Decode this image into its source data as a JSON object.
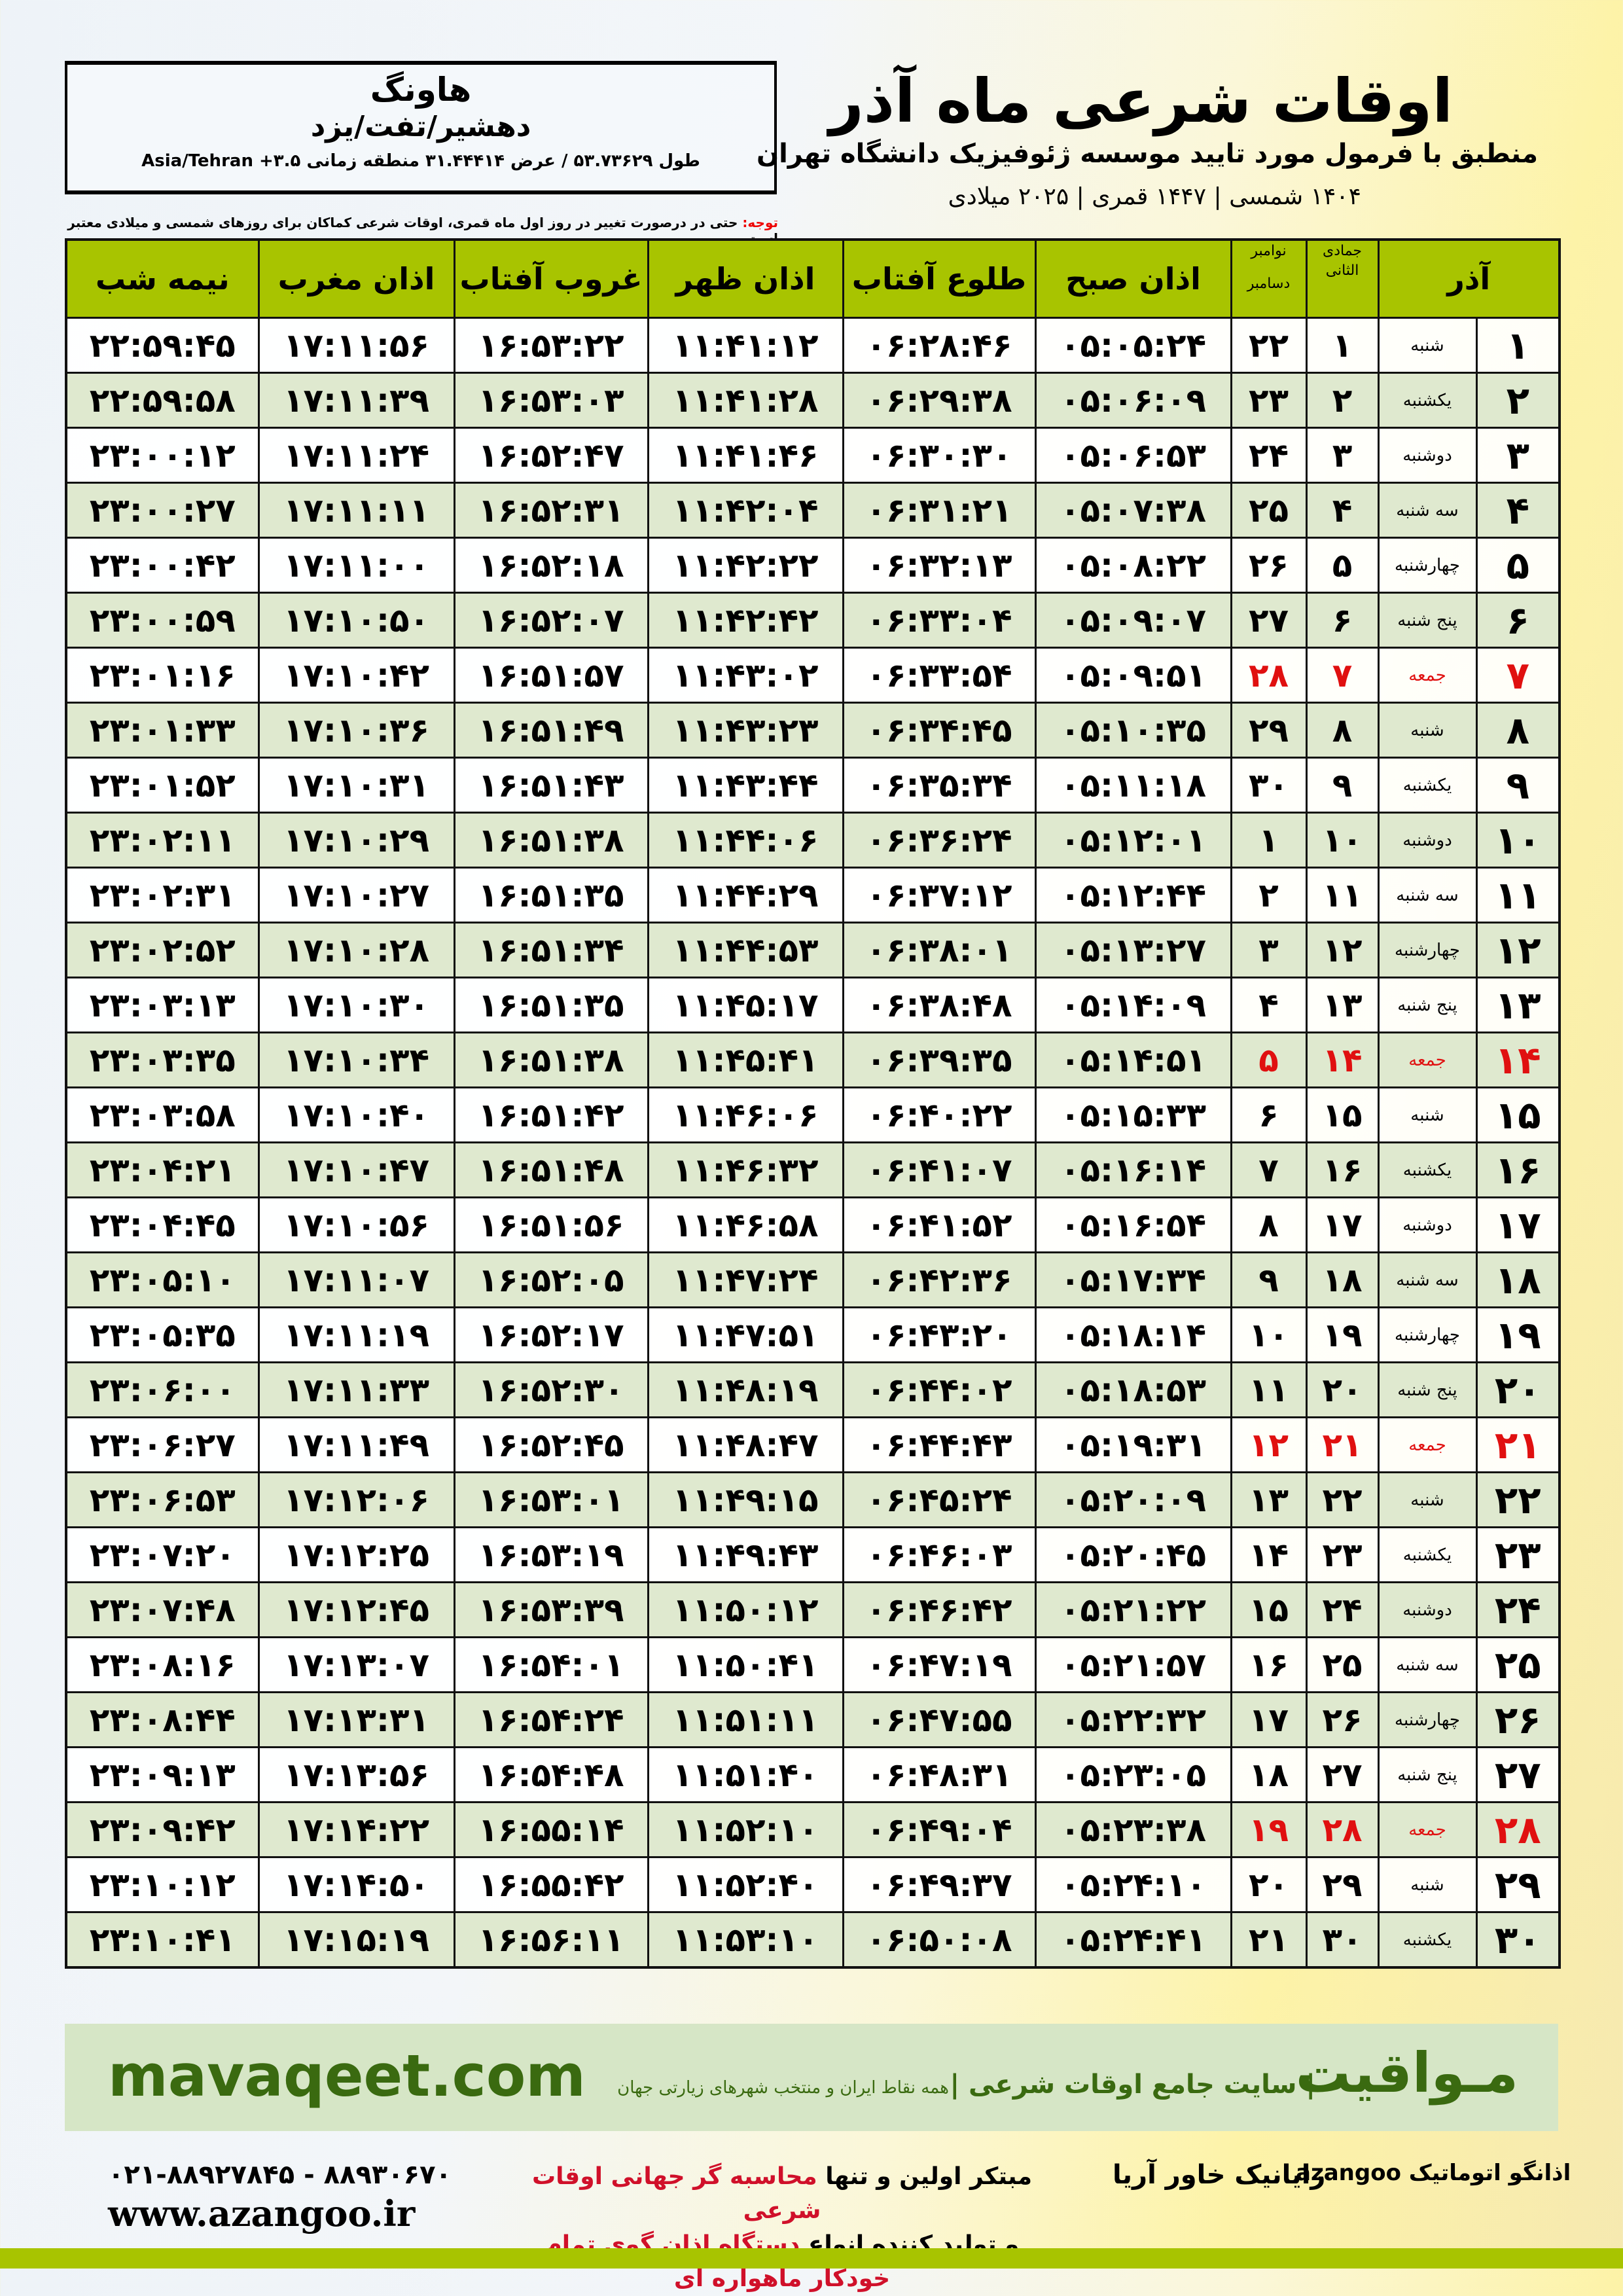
{
  "location": {
    "city": "هاونگ",
    "region": "دهشیر/تفت/یزد",
    "coords": "طول ۵۳.۷۳۶۲۹ / عرض ۳۱.۴۴۴۱۴ منطقه زمانی ۳.۵+ Asia/Tehran"
  },
  "header": {
    "title": "اوقات شرعی ماه آذر",
    "subtitle": "منطبق با فرمول مورد تایید موسسه ژئوفیزیک دانشگاه تهران",
    "dates": "۱۴۰۴ شمسی | ۱۴۴۷ قمری | ۲۰۲۵ میلادی"
  },
  "note": {
    "label": "توجه:",
    "text": " حتی در درصورت تغییر در روز اول ماه قمری، اوقات شرعی کماکان برای روزهای شمسی و میلادی معتبر است."
  },
  "table": {
    "headers": {
      "month": "آذر",
      "hijri": "جمادی الثانی",
      "greg1": "نوامبر",
      "greg2": "دسامبر",
      "fajr": "اذان صبح",
      "sunrise": "طلوع آفتاب",
      "dhuhr": "اذان ظهر",
      "sunset": "غروب آفتاب",
      "maghrib": "اذان مغرب",
      "midnight": "نیمه شب"
    },
    "rows": [
      [
        "۱",
        "شنبه",
        "۱",
        "۲۲",
        "۰۵:۰۵:۲۴",
        "۰۶:۲۸:۴۶",
        "۱۱:۴۱:۱۲",
        "۱۶:۵۳:۲۲",
        "۱۷:۱۱:۵۶",
        "۲۲:۵۹:۴۵"
      ],
      [
        "۲",
        "یکشنبه",
        "۲",
        "۲۳",
        "۰۵:۰۶:۰۹",
        "۰۶:۲۹:۳۸",
        "۱۱:۴۱:۲۸",
        "۱۶:۵۳:۰۳",
        "۱۷:۱۱:۳۹",
        "۲۲:۵۹:۵۸"
      ],
      [
        "۳",
        "دوشنبه",
        "۳",
        "۲۴",
        "۰۵:۰۶:۵۳",
        "۰۶:۳۰:۳۰",
        "۱۱:۴۱:۴۶",
        "۱۶:۵۲:۴۷",
        "۱۷:۱۱:۲۴",
        "۲۳:۰۰:۱۲"
      ],
      [
        "۴",
        "سه شنبه",
        "۴",
        "۲۵",
        "۰۵:۰۷:۳۸",
        "۰۶:۳۱:۲۱",
        "۱۱:۴۲:۰۴",
        "۱۶:۵۲:۳۱",
        "۱۷:۱۱:۱۱",
        "۲۳:۰۰:۲۷"
      ],
      [
        "۵",
        "چهارشنبه",
        "۵",
        "۲۶",
        "۰۵:۰۸:۲۲",
        "۰۶:۳۲:۱۳",
        "۱۱:۴۲:۲۲",
        "۱۶:۵۲:۱۸",
        "۱۷:۱۱:۰۰",
        "۲۳:۰۰:۴۲"
      ],
      [
        "۶",
        "پنج شنبه",
        "۶",
        "۲۷",
        "۰۵:۰۹:۰۷",
        "۰۶:۳۳:۰۴",
        "۱۱:۴۲:۴۲",
        "۱۶:۵۲:۰۷",
        "۱۷:۱۰:۵۰",
        "۲۳:۰۰:۵۹"
      ],
      [
        "۷",
        "جمعه",
        "۷",
        "۲۸",
        "۰۵:۰۹:۵۱",
        "۰۶:۳۳:۵۴",
        "۱۱:۴۳:۰۲",
        "۱۶:۵۱:۵۷",
        "۱۷:۱۰:۴۲",
        "۲۳:۰۱:۱۶"
      ],
      [
        "۸",
        "شنبه",
        "۸",
        "۲۹",
        "۰۵:۱۰:۳۵",
        "۰۶:۳۴:۴۵",
        "۱۱:۴۳:۲۳",
        "۱۶:۵۱:۴۹",
        "۱۷:۱۰:۳۶",
        "۲۳:۰۱:۳۳"
      ],
      [
        "۹",
        "یکشنبه",
        "۹",
        "۳۰",
        "۰۵:۱۱:۱۸",
        "۰۶:۳۵:۳۴",
        "۱۱:۴۳:۴۴",
        "۱۶:۵۱:۴۳",
        "۱۷:۱۰:۳۱",
        "۲۳:۰۱:۵۲"
      ],
      [
        "۱۰",
        "دوشنبه",
        "۱۰",
        "۱",
        "۰۵:۱۲:۰۱",
        "۰۶:۳۶:۲۴",
        "۱۱:۴۴:۰۶",
        "۱۶:۵۱:۳۸",
        "۱۷:۱۰:۲۹",
        "۲۳:۰۲:۱۱"
      ],
      [
        "۱۱",
        "سه شنبه",
        "۱۱",
        "۲",
        "۰۵:۱۲:۴۴",
        "۰۶:۳۷:۱۲",
        "۱۱:۴۴:۲۹",
        "۱۶:۵۱:۳۵",
        "۱۷:۱۰:۲۷",
        "۲۳:۰۲:۳۱"
      ],
      [
        "۱۲",
        "چهارشنبه",
        "۱۲",
        "۳",
        "۰۵:۱۳:۲۷",
        "۰۶:۳۸:۰۱",
        "۱۱:۴۴:۵۳",
        "۱۶:۵۱:۳۴",
        "۱۷:۱۰:۲۸",
        "۲۳:۰۲:۵۲"
      ],
      [
        "۱۳",
        "پنج شنبه",
        "۱۳",
        "۴",
        "۰۵:۱۴:۰۹",
        "۰۶:۳۸:۴۸",
        "۱۱:۴۵:۱۷",
        "۱۶:۵۱:۳۵",
        "۱۷:۱۰:۳۰",
        "۲۳:۰۳:۱۳"
      ],
      [
        "۱۴",
        "جمعه",
        "۱۴",
        "۵",
        "۰۵:۱۴:۵۱",
        "۰۶:۳۹:۳۵",
        "۱۱:۴۵:۴۱",
        "۱۶:۵۱:۳۸",
        "۱۷:۱۰:۳۴",
        "۲۳:۰۳:۳۵"
      ],
      [
        "۱۵",
        "شنبه",
        "۱۵",
        "۶",
        "۰۵:۱۵:۳۳",
        "۰۶:۴۰:۲۲",
        "۱۱:۴۶:۰۶",
        "۱۶:۵۱:۴۲",
        "۱۷:۱۰:۴۰",
        "۲۳:۰۳:۵۸"
      ],
      [
        "۱۶",
        "یکشنبه",
        "۱۶",
        "۷",
        "۰۵:۱۶:۱۴",
        "۰۶:۴۱:۰۷",
        "۱۱:۴۶:۳۲",
        "۱۶:۵۱:۴۸",
        "۱۷:۱۰:۴۷",
        "۲۳:۰۴:۲۱"
      ],
      [
        "۱۷",
        "دوشنبه",
        "۱۷",
        "۸",
        "۰۵:۱۶:۵۴",
        "۰۶:۴۱:۵۲",
        "۱۱:۴۶:۵۸",
        "۱۶:۵۱:۵۶",
        "۱۷:۱۰:۵۶",
        "۲۳:۰۴:۴۵"
      ],
      [
        "۱۸",
        "سه شنبه",
        "۱۸",
        "۹",
        "۰۵:۱۷:۳۴",
        "۰۶:۴۲:۳۶",
        "۱۱:۴۷:۲۴",
        "۱۶:۵۲:۰۵",
        "۱۷:۱۱:۰۷",
        "۲۳:۰۵:۱۰"
      ],
      [
        "۱۹",
        "چهارشنبه",
        "۱۹",
        "۱۰",
        "۰۵:۱۸:۱۴",
        "۰۶:۴۳:۲۰",
        "۱۱:۴۷:۵۱",
        "۱۶:۵۲:۱۷",
        "۱۷:۱۱:۱۹",
        "۲۳:۰۵:۳۵"
      ],
      [
        "۲۰",
        "پنج شنبه",
        "۲۰",
        "۱۱",
        "۰۵:۱۸:۵۳",
        "۰۶:۴۴:۰۲",
        "۱۱:۴۸:۱۹",
        "۱۶:۵۲:۳۰",
        "۱۷:۱۱:۳۳",
        "۲۳:۰۶:۰۰"
      ],
      [
        "۲۱",
        "جمعه",
        "۲۱",
        "۱۲",
        "۰۵:۱۹:۳۱",
        "۰۶:۴۴:۴۳",
        "۱۱:۴۸:۴۷",
        "۱۶:۵۲:۴۵",
        "۱۷:۱۱:۴۹",
        "۲۳:۰۶:۲۷"
      ],
      [
        "۲۲",
        "شنبه",
        "۲۲",
        "۱۳",
        "۰۵:۲۰:۰۹",
        "۰۶:۴۵:۲۴",
        "۱۱:۴۹:۱۵",
        "۱۶:۵۳:۰۱",
        "۱۷:۱۲:۰۶",
        "۲۳:۰۶:۵۳"
      ],
      [
        "۲۳",
        "یکشنبه",
        "۲۳",
        "۱۴",
        "۰۵:۲۰:۴۵",
        "۰۶:۴۶:۰۳",
        "۱۱:۴۹:۴۳",
        "۱۶:۵۳:۱۹",
        "۱۷:۱۲:۲۵",
        "۲۳:۰۷:۲۰"
      ],
      [
        "۲۴",
        "دوشنبه",
        "۲۴",
        "۱۵",
        "۰۵:۲۱:۲۲",
        "۰۶:۴۶:۴۲",
        "۱۱:۵۰:۱۲",
        "۱۶:۵۳:۳۹",
        "۱۷:۱۲:۴۵",
        "۲۳:۰۷:۴۸"
      ],
      [
        "۲۵",
        "سه شنبه",
        "۲۵",
        "۱۶",
        "۰۵:۲۱:۵۷",
        "۰۶:۴۷:۱۹",
        "۱۱:۵۰:۴۱",
        "۱۶:۵۴:۰۱",
        "۱۷:۱۳:۰۷",
        "۲۳:۰۸:۱۶"
      ],
      [
        "۲۶",
        "چهارشنبه",
        "۲۶",
        "۱۷",
        "۰۵:۲۲:۳۲",
        "۰۶:۴۷:۵۵",
        "۱۱:۵۱:۱۱",
        "۱۶:۵۴:۲۴",
        "۱۷:۱۳:۳۱",
        "۲۳:۰۸:۴۴"
      ],
      [
        "۲۷",
        "پنج شنبه",
        "۲۷",
        "۱۸",
        "۰۵:۲۳:۰۵",
        "۰۶:۴۸:۳۱",
        "۱۱:۵۱:۴۰",
        "۱۶:۵۴:۴۸",
        "۱۷:۱۳:۵۶",
        "۲۳:۰۹:۱۳"
      ],
      [
        "۲۸",
        "جمعه",
        "۲۸",
        "۱۹",
        "۰۵:۲۳:۳۸",
        "۰۶:۴۹:۰۴",
        "۱۱:۵۲:۱۰",
        "۱۶:۵۵:۱۴",
        "۱۷:۱۴:۲۲",
        "۲۳:۰۹:۴۲"
      ],
      [
        "۲۹",
        "شنبه",
        "۲۹",
        "۲۰",
        "۰۵:۲۴:۱۰",
        "۰۶:۴۹:۳۷",
        "۱۱:۵۲:۴۰",
        "۱۶:۵۵:۴۲",
        "۱۷:۱۴:۵۰",
        "۲۳:۱۰:۱۲"
      ],
      [
        "۳۰",
        "یکشنبه",
        "۳۰",
        "۲۱",
        "۰۵:۲۴:۴۱",
        "۰۶:۵۰:۰۸",
        "۱۱:۵۳:۱۰",
        "۱۶:۵۶:۱۱",
        "۱۷:۱۵:۱۹",
        "۲۳:۱۰:۴۱"
      ]
    ],
    "friday_label": "جمعه",
    "colors": {
      "header": "#a8c400",
      "even_row": "#dfe9cf",
      "friday": "#e01010"
    }
  },
  "footer": {
    "brand": "مـواقیت",
    "slogan": "| سایت جامع اوقات شرعی |",
    "slogan2": "همه نقاط ایران و منتخب شهرهای زیارتی جهان",
    "site": "mavaqeet.com",
    "phone": "۰۲۱-۸۸۹۲۷۸۴۵ - ۸۸۹۳۰۶۷۰",
    "web": "www.azangoo.ir",
    "promo1a": "مبتکر اولین و تنها ",
    "promo1b": "محاسبه گر جهانی اوقات شرعی",
    "promo2a": "و تولید کننده انواع ",
    "promo2b": "دستگاه اذان گوی تمام خودکار ماهواره ای",
    "logo_raianik": "رایانیک خاور آریا",
    "logo_azangoo": "اذانگو اتوماتیک azangoo"
  }
}
